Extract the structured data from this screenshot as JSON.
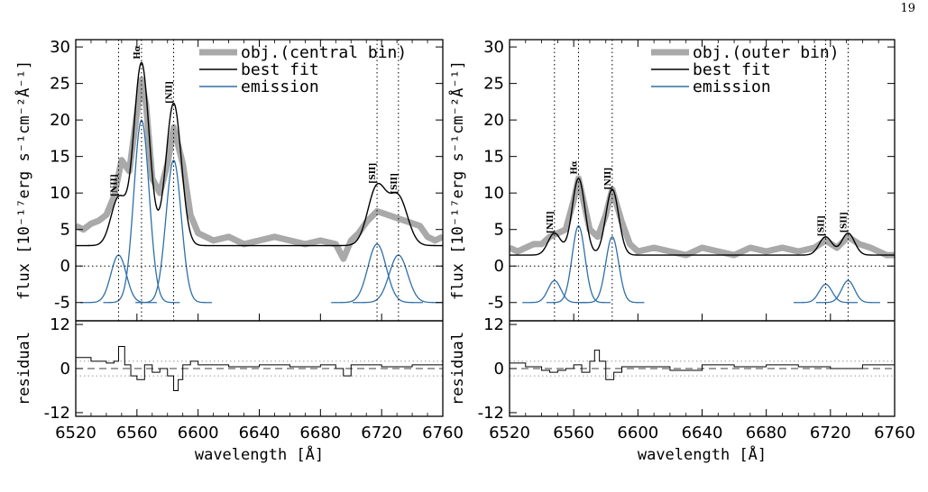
{
  "page": {
    "number": "19"
  },
  "colors": {
    "observed": "#a9a9a9",
    "fit": "#000000",
    "emission": "#2f6fa7",
    "axis": "#000000"
  },
  "chart_data": [
    {
      "type": "line",
      "panel": "left",
      "xlabel": "wavelength [Å]",
      "ylabel": "flux [10⁻¹⁷erg s⁻¹cm⁻²Å⁻¹]",
      "residual_ylabel": "residual",
      "xlim": [
        6520,
        6760
      ],
      "ylim": [
        -7.5,
        31
      ],
      "residual_ylim": [
        -13,
        13
      ],
      "xticks": [
        6520,
        6560,
        6600,
        6640,
        6680,
        6720,
        6760
      ],
      "yticks": [
        -5,
        0,
        5,
        10,
        15,
        20,
        25,
        30
      ],
      "residual_yticks": [
        -12,
        0,
        12
      ],
      "legend": {
        "location": "top-right",
        "entries": [
          "obj.(central bin)",
          "best fit",
          "emission"
        ]
      },
      "line_markers": [
        {
          "label": "[NII]",
          "wavelength": 6548
        },
        {
          "label": "Hα",
          "wavelength": 6563
        },
        {
          "label": "[NII]",
          "wavelength": 6584
        },
        {
          "label": "[SII]",
          "wavelength": 6717
        },
        {
          "label": "[SII]",
          "wavelength": 6731
        }
      ],
      "continuum": 2.8,
      "emission_components": [
        {
          "name": "[NII]6548",
          "center": 6548,
          "amplitude": 6.5,
          "sigma": 5
        },
        {
          "name": "Hα",
          "center": 6563,
          "amplitude": 25,
          "sigma": 5
        },
        {
          "name": "[NII]6584",
          "center": 6584,
          "amplitude": 19.5,
          "sigma": 5
        },
        {
          "name": "[SII]6717",
          "center": 6717,
          "amplitude": 8,
          "sigma": 6
        },
        {
          "name": "[SII]6731",
          "center": 6731,
          "amplitude": 6.5,
          "sigma": 6
        }
      ],
      "observed": {
        "x": [
          6520,
          6525,
          6530,
          6535,
          6540,
          6545,
          6550,
          6555,
          6560,
          6563,
          6566,
          6570,
          6575,
          6580,
          6584,
          6590,
          6595,
          6600,
          6610,
          6620,
          6630,
          6640,
          6650,
          6660,
          6670,
          6680,
          6690,
          6695,
          6700,
          6705,
          6710,
          6717,
          6724,
          6731,
          6738,
          6745,
          6750,
          6755,
          6760
        ],
        "y": [
          5.5,
          5,
          5.8,
          6.2,
          7,
          9.5,
          14.5,
          13,
          21,
          25.5,
          22,
          12,
          10,
          14,
          19,
          14,
          7,
          4.5,
          3.5,
          4,
          3,
          3.5,
          4,
          3.5,
          3,
          3.5,
          3,
          1,
          3.5,
          4.5,
          6,
          7.5,
          7,
          6.5,
          6,
          5.5,
          4,
          3.5,
          4
        ]
      },
      "residual": {
        "x": [
          6520,
          6530,
          6540,
          6545,
          6548,
          6552,
          6556,
          6560,
          6565,
          6570,
          6575,
          6580,
          6584,
          6587,
          6590,
          6595,
          6600,
          6620,
          6640,
          6660,
          6680,
          6690,
          6695,
          6700,
          6720,
          6740,
          6760
        ],
        "y": [
          3,
          2,
          1.5,
          2,
          6,
          1,
          -2,
          -3,
          1,
          -1,
          0,
          -2,
          -6,
          -3,
          1,
          2,
          1,
          0.5,
          1,
          0.5,
          1,
          0,
          -2,
          1,
          0.5,
          1,
          1.5
        ]
      }
    },
    {
      "type": "line",
      "panel": "right",
      "xlabel": "wavelength [Å]",
      "ylabel": "flux [10⁻¹⁷erg s⁻¹cm⁻²Å⁻¹]",
      "residual_ylabel": "residual",
      "xlim": [
        6520,
        6760
      ],
      "ylim": [
        -7.5,
        31
      ],
      "residual_ylim": [
        -13,
        13
      ],
      "xticks": [
        6520,
        6560,
        6600,
        6640,
        6680,
        6720,
        6760
      ],
      "yticks": [
        -5,
        0,
        5,
        10,
        15,
        20,
        25,
        30
      ],
      "residual_yticks": [
        -12,
        0,
        12
      ],
      "legend": {
        "location": "top-right",
        "entries": [
          "obj.(outer bin)",
          "best fit",
          "emission"
        ]
      },
      "line_markers": [
        {
          "label": "[NII]",
          "wavelength": 6548
        },
        {
          "label": "Hα",
          "wavelength": 6563
        },
        {
          "label": "[NII]",
          "wavelength": 6584
        },
        {
          "label": "[SII]",
          "wavelength": 6717
        },
        {
          "label": "[SII]",
          "wavelength": 6731
        }
      ],
      "continuum": 1.5,
      "emission_components": [
        {
          "name": "[NII]6548",
          "center": 6548,
          "amplitude": 3,
          "sigma": 4
        },
        {
          "name": "Hα",
          "center": 6563,
          "amplitude": 10.5,
          "sigma": 4
        },
        {
          "name": "[NII]6584",
          "center": 6584,
          "amplitude": 9,
          "sigma": 4
        },
        {
          "name": "[SII]6717",
          "center": 6717,
          "amplitude": 2.5,
          "sigma": 4
        },
        {
          "name": "[SII]6731",
          "center": 6731,
          "amplitude": 3,
          "sigma": 4
        }
      ],
      "observed": {
        "x": [
          6520,
          6525,
          6530,
          6535,
          6540,
          6545,
          6550,
          6555,
          6560,
          6563,
          6566,
          6570,
          6575,
          6580,
          6584,
          6590,
          6595,
          6600,
          6610,
          6620,
          6630,
          6640,
          6650,
          6660,
          6670,
          6680,
          6690,
          6700,
          6710,
          6717,
          6724,
          6731,
          6738,
          6745,
          6750,
          6755,
          6760
        ],
        "y": [
          2.5,
          2,
          2.5,
          3,
          3,
          4,
          4.5,
          5,
          9,
          12,
          9,
          5,
          4,
          7,
          10.5,
          6,
          3,
          2,
          2.5,
          2,
          1.5,
          2.5,
          2,
          1.5,
          2.5,
          2,
          2.5,
          2,
          2.5,
          3.5,
          2.5,
          4,
          3,
          2.5,
          2,
          1.5,
          1.5
        ]
      },
      "residual": {
        "x": [
          6520,
          6530,
          6540,
          6545,
          6550,
          6555,
          6560,
          6565,
          6570,
          6573,
          6576,
          6580,
          6585,
          6590,
          6600,
          6620,
          6640,
          6660,
          6680,
          6700,
          6720,
          6740,
          6760
        ],
        "y": [
          1.5,
          0.5,
          -0.5,
          -1,
          -0.5,
          0,
          1,
          -1,
          2,
          5,
          2,
          -3,
          -1,
          0.5,
          0.5,
          -0.5,
          1,
          0.5,
          1,
          0.5,
          0,
          1,
          0.5
        ]
      }
    }
  ]
}
